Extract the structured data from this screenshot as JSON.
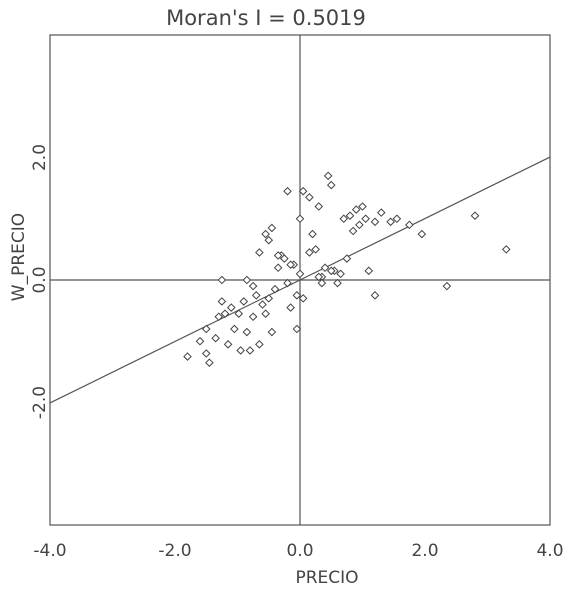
{
  "chart_data": {
    "type": "scatter",
    "title": "Moran's I = 0.5019",
    "xlabel": "PRECIO",
    "ylabel": "W_PRECIO",
    "xlim": [
      -4.0,
      4.0
    ],
    "ylim": [
      -4.0,
      4.0
    ],
    "x_ticks": [
      {
        "value": -4.0,
        "label": "-4.0"
      },
      {
        "value": -2.0,
        "label": "-2.0"
      },
      {
        "value": 0.0,
        "label": "0.0"
      },
      {
        "value": 2.0,
        "label": "2.0"
      },
      {
        "value": 4.0,
        "label": "4.0"
      }
    ],
    "y_ticks": [
      {
        "value": -2.0,
        "label": "-2.0"
      },
      {
        "value": 0.0,
        "label": "0.0"
      },
      {
        "value": 2.0,
        "label": "2.0"
      }
    ],
    "slope": 0.5019,
    "grid": false,
    "zero_lines": true,
    "marker": "diamond",
    "colors": {
      "line": "#555555",
      "text": "#444444",
      "marker": "#444444"
    },
    "points": [
      [
        -1.8,
        -1.25
      ],
      [
        -1.6,
        -1.0
      ],
      [
        -1.5,
        -1.2
      ],
      [
        -1.45,
        -1.35
      ],
      [
        -1.5,
        -0.8
      ],
      [
        -1.35,
        -0.95
      ],
      [
        -1.3,
        -0.6
      ],
      [
        -1.25,
        -0.35
      ],
      [
        -1.2,
        -0.55
      ],
      [
        -1.15,
        -1.05
      ],
      [
        -1.1,
        -0.45
      ],
      [
        -1.05,
        -0.8
      ],
      [
        -0.98,
        -0.55
      ],
      [
        -0.95,
        -1.15
      ],
      [
        -0.9,
        -0.35
      ],
      [
        -0.85,
        -0.85
      ],
      [
        -0.8,
        -1.15
      ],
      [
        -0.75,
        -0.6
      ],
      [
        -0.7,
        -0.25
      ],
      [
        -0.65,
        -1.05
      ],
      [
        -0.6,
        -0.4
      ],
      [
        -0.55,
        -0.55
      ],
      [
        -0.5,
        -0.3
      ],
      [
        -0.45,
        -0.85
      ],
      [
        -0.4,
        -0.15
      ],
      [
        -1.25,
        0.0
      ],
      [
        -0.85,
        0.0
      ],
      [
        -0.75,
        -0.1
      ],
      [
        -0.65,
        0.45
      ],
      [
        -0.55,
        0.75
      ],
      [
        -0.5,
        0.65
      ],
      [
        -0.45,
        0.85
      ],
      [
        -0.35,
        0.2
      ],
      [
        -0.3,
        0.4
      ],
      [
        -0.25,
        0.35
      ],
      [
        -0.2,
        -0.05
      ],
      [
        -0.15,
        -0.45
      ],
      [
        -0.1,
        0.25
      ],
      [
        -0.05,
        -0.25
      ],
      [
        0.0,
        0.1
      ],
      [
        0.05,
        -0.3
      ],
      [
        -0.05,
        -0.8
      ],
      [
        -0.2,
        1.45
      ],
      [
        0.0,
        1.0
      ],
      [
        0.05,
        1.45
      ],
      [
        0.15,
        1.35
      ],
      [
        0.2,
        0.75
      ],
      [
        0.25,
        0.5
      ],
      [
        0.3,
        1.2
      ],
      [
        0.35,
        0.05
      ],
      [
        0.4,
        0.2
      ],
      [
        0.45,
        1.7
      ],
      [
        0.5,
        1.55
      ],
      [
        0.55,
        0.15
      ],
      [
        0.6,
        -0.05
      ],
      [
        0.65,
        0.1
      ],
      [
        0.7,
        1.0
      ],
      [
        0.75,
        0.35
      ],
      [
        0.8,
        1.05
      ],
      [
        0.85,
        0.8
      ],
      [
        0.9,
        1.15
      ],
      [
        0.95,
        0.9
      ],
      [
        1.0,
        1.2
      ],
      [
        1.05,
        1.0
      ],
      [
        1.1,
        0.15
      ],
      [
        1.2,
        0.95
      ],
      [
        1.3,
        1.1
      ],
      [
        1.45,
        0.95
      ],
      [
        1.55,
        1.0
      ],
      [
        1.75,
        0.9
      ],
      [
        1.95,
        0.75
      ],
      [
        0.3,
        0.05
      ],
      [
        0.35,
        -0.05
      ],
      [
        0.5,
        0.15
      ],
      [
        0.15,
        0.45
      ],
      [
        -0.35,
        0.4
      ],
      [
        -0.15,
        0.25
      ],
      [
        1.2,
        -0.25
      ],
      [
        2.35,
        -0.1
      ],
      [
        2.8,
        1.05
      ],
      [
        3.3,
        0.5
      ]
    ]
  }
}
